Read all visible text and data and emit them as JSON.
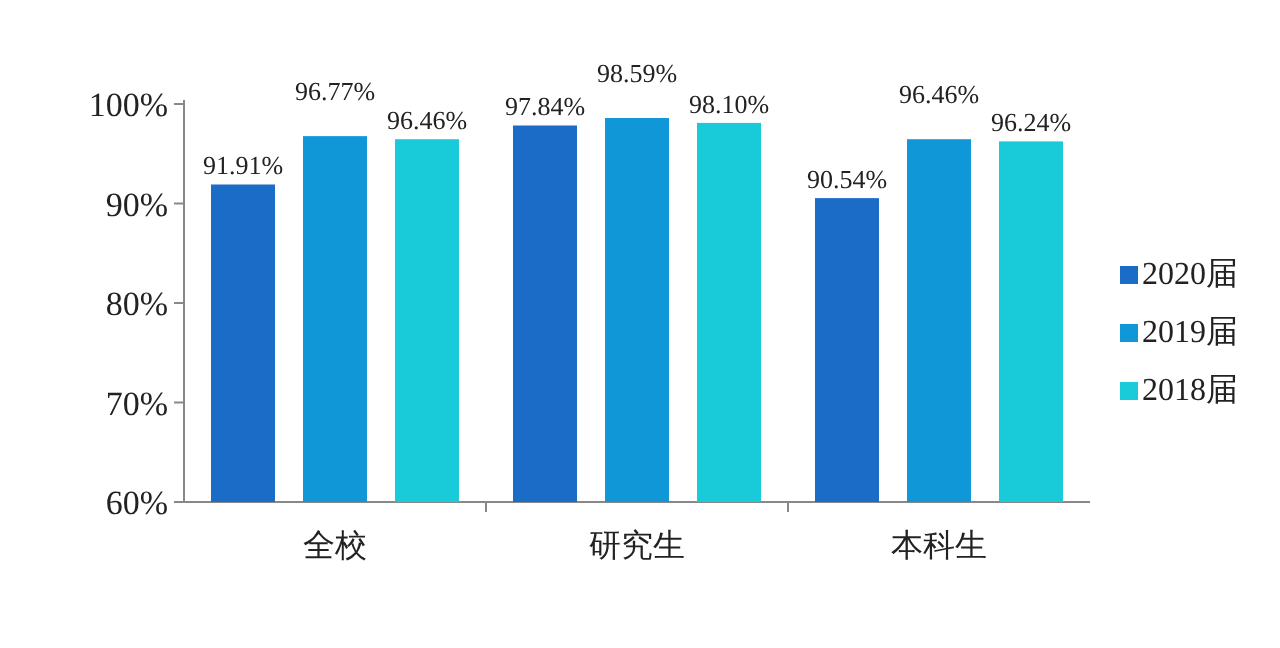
{
  "chart_data": {
    "type": "bar",
    "categories": [
      "全校",
      "研究生",
      "本科生"
    ],
    "series": [
      {
        "name": "2020届",
        "color": "#1b6cc6",
        "values": [
          91.91,
          97.84,
          90.54
        ]
      },
      {
        "name": "2019届",
        "color": "#0f97d8",
        "values": [
          96.77,
          98.59,
          96.46
        ]
      },
      {
        "name": "2018届",
        "color": "#19cbd8",
        "values": [
          96.46,
          98.1,
          96.24
        ]
      }
    ],
    "value_labels": [
      [
        "91.91%",
        "97.84%",
        "90.54%"
      ],
      [
        "96.77%",
        "98.59%",
        "96.46%"
      ],
      [
        "96.46%",
        "98.10%",
        "96.24%"
      ]
    ],
    "ylim": [
      60,
      100
    ],
    "yticks": [
      {
        "value": 60,
        "label": "60%"
      },
      {
        "value": 70,
        "label": "70%"
      },
      {
        "value": 80,
        "label": "80%"
      },
      {
        "value": 90,
        "label": "90%"
      },
      {
        "value": 100,
        "label": "100%"
      }
    ],
    "grid": false,
    "legend": "right"
  }
}
